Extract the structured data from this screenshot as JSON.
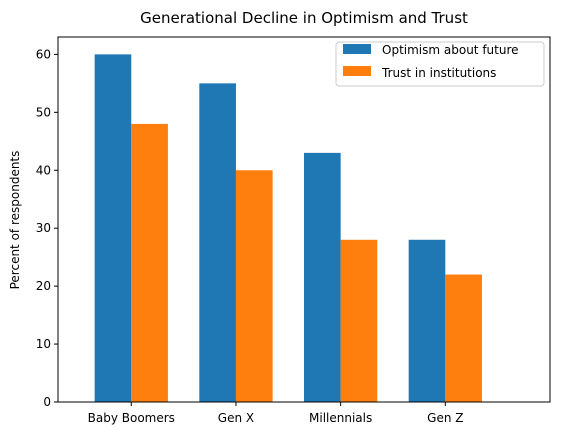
{
  "chart_data": {
    "type": "bar",
    "title": "Generational Decline in Optimism and Trust",
    "xlabel": "",
    "ylabel": "Percent of respondents",
    "categories": [
      "Baby Boomers",
      "Gen X",
      "Millennials",
      "Gen Z"
    ],
    "series": [
      {
        "name": "Optimism about future",
        "values": [
          60,
          55,
          43,
          28
        ],
        "color": "#1f77b4"
      },
      {
        "name": "Trust in institutions",
        "values": [
          48,
          40,
          28,
          22
        ],
        "color": "#ff7f0e"
      }
    ],
    "ylim": [
      0,
      63
    ],
    "yticks": [
      "0",
      "10",
      "20",
      "30",
      "40",
      "50",
      "60"
    ],
    "grid": false,
    "legend_position": "top-right"
  }
}
